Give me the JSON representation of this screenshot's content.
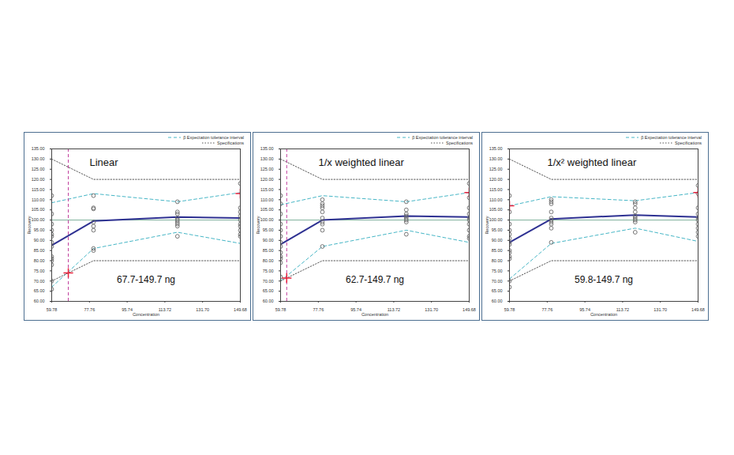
{
  "chart_data": [
    {
      "type": "line",
      "title": "Linear",
      "annotations": [
        "67.7-149.7 ng"
      ],
      "xlabel": "Concentration",
      "ylabel": "Recovery",
      "xlim": [
        59.78,
        149.68
      ],
      "xticks": [
        59.78,
        77.76,
        95.74,
        113.72,
        {
          "value": 131.7,
          "label": "131.70"
        },
        149.68
      ],
      "ylim": [
        60,
        135
      ],
      "yticks": [
        {
          "value": 60,
          "label": "60.00"
        },
        {
          "value": 65,
          "label": "65.00"
        },
        {
          "value": 70,
          "label": "70.00"
        },
        {
          "value": 75,
          "label": "75.00"
        },
        {
          "value": 80,
          "label": "80.00"
        },
        {
          "value": 85,
          "label": "85.00"
        },
        {
          "value": 90,
          "label": "90.00"
        },
        {
          "value": 95,
          "label": "95.00"
        },
        {
          "value": 100,
          "label": "100.00"
        },
        {
          "value": 105,
          "label": "105.00"
        },
        {
          "value": 110,
          "label": "110.00"
        },
        {
          "value": 115,
          "label": "115.00"
        },
        {
          "value": 120,
          "label": "120.00"
        },
        {
          "value": 125,
          "label": "125.00"
        },
        {
          "value": 130,
          "label": "130.00"
        },
        {
          "value": 135,
          "label": "135.00"
        }
      ],
      "grid": false,
      "legend": "top-right",
      "x": [
        59.78,
        79.7,
        119.7,
        149.68
      ],
      "series": [
        {
          "type": "line",
          "color": "#2e3192",
          "line_style": "solid",
          "values": [
            87.5,
            99.5,
            101.5,
            101
          ]
        },
        {
          "type": "interval",
          "name": "β Expectation tolerance interval",
          "color": "#46b6c6",
          "line_style": "dashed",
          "x": [
            59.78,
            79.7,
            119.7,
            149.68
          ],
          "lower": [
            67,
            86,
            94,
            88.5
          ],
          "upper": [
            108.5,
            113,
            109,
            113.5
          ]
        },
        {
          "type": "interval",
          "name": "Specifications",
          "color": "#555555",
          "line_style": "dotted",
          "x": [
            59.78,
            79.7,
            149.68
          ],
          "lower": [
            70,
            80,
            80
          ],
          "upper": [
            130,
            120,
            120
          ]
        },
        {
          "type": "scatter",
          "marker": "circle",
          "color": "#666666",
          "x": [
            59.78,
            59.78,
            59.78,
            59.78,
            59.78,
            59.78,
            59.78,
            59.78,
            59.78,
            59.78,
            59.78,
            59.78,
            59.78,
            59.78,
            79.7,
            79.7,
            79.7,
            79.7,
            79.7,
            79.7,
            79.7,
            79.7,
            119.7,
            119.7,
            119.7,
            119.7,
            119.7,
            119.7,
            119.7,
            119.7,
            119.7,
            149.68,
            149.68,
            149.68,
            149.68,
            149.68,
            149.68,
            149.68,
            149.68,
            149.68,
            149.68
          ],
          "values": [
            112,
            103,
            98,
            95,
            93,
            92,
            89,
            87,
            82,
            81,
            80,
            78,
            70,
            66,
            112,
            106,
            105.5,
            99,
            97,
            95,
            86,
            85,
            109,
            104,
            103,
            101,
            100,
            99,
            98,
            97,
            92,
            118,
            106,
            104,
            102,
            100,
            98,
            97,
            95,
            93,
            92
          ]
        }
      ],
      "reference_line": {
        "value": 100,
        "color": "#7fb09c"
      },
      "limits": {
        "values": [
          67.7,
          149.7
        ],
        "color": "#c03c9c",
        "line_style": "dashed"
      },
      "intersections": {
        "x": [
          67.7,
          149.68
        ],
        "values": [
          74,
          113
        ],
        "color": "#e8223c",
        "marker": "plus"
      }
    },
    {
      "type": "line",
      "title": "1/x weighted linear",
      "annotations": [
        "62.7-149.7 ng"
      ],
      "xlabel": "Concentration",
      "ylabel": "Recovery",
      "xlim": [
        59.78,
        149.68
      ],
      "xticks": [
        59.78,
        77.76,
        95.74,
        113.72,
        {
          "value": 131.7,
          "label": "131.70"
        },
        149.68
      ],
      "ylim": [
        60,
        135
      ],
      "yticks": [
        {
          "value": 60,
          "label": "60.00"
        },
        {
          "value": 65,
          "label": "65.00"
        },
        {
          "value": 70,
          "label": "70.00"
        },
        {
          "value": 75,
          "label": "75.00"
        },
        {
          "value": 80,
          "label": "80.00"
        },
        {
          "value": 85,
          "label": "85.00"
        },
        {
          "value": 90,
          "label": "90.00"
        },
        {
          "value": 95,
          "label": "95.00"
        },
        {
          "value": 100,
          "label": "100.00"
        },
        {
          "value": 105,
          "label": "105.00"
        },
        {
          "value": 110,
          "label": "110.00"
        },
        {
          "value": 115,
          "label": "115.00"
        },
        {
          "value": 120,
          "label": "120.00"
        },
        {
          "value": 125,
          "label": "125.00"
        },
        {
          "value": 130,
          "label": "130.00"
        },
        {
          "value": 135,
          "label": "135.00"
        }
      ],
      "grid": false,
      "legend": "top-right",
      "x": [
        59.78,
        79.7,
        119.7,
        149.68
      ],
      "series": [
        {
          "type": "line",
          "color": "#2e3192",
          "line_style": "solid",
          "values": [
            88,
            100,
            102,
            101.5
          ]
        },
        {
          "type": "interval",
          "name": "β Expectation tolerance interval",
          "color": "#46b6c6",
          "line_style": "dashed",
          "x": [
            59.78,
            79.7,
            119.7,
            149.68
          ],
          "lower": [
            70,
            87,
            95,
            89
          ],
          "upper": [
            107.5,
            112,
            109,
            113.5
          ]
        },
        {
          "type": "interval",
          "name": "Specifications",
          "color": "#555555",
          "line_style": "dotted",
          "x": [
            59.78,
            79.7,
            149.68
          ],
          "lower": [
            70,
            80,
            80
          ],
          "upper": [
            130,
            120,
            120
          ]
        },
        {
          "type": "scatter",
          "marker": "circle",
          "color": "#666666",
          "x": [
            59.78,
            59.78,
            59.78,
            59.78,
            59.78,
            59.78,
            59.78,
            59.78,
            59.78,
            59.78,
            59.78,
            59.78,
            59.78,
            79.7,
            79.7,
            79.7,
            79.7,
            79.7,
            79.7,
            79.7,
            79.7,
            79.7,
            79.7,
            119.7,
            119.7,
            119.7,
            119.7,
            119.7,
            119.7,
            119.7,
            119.7,
            149.68,
            149.68,
            149.68,
            149.68,
            149.68,
            149.68,
            149.68,
            149.68,
            149.68,
            149.68
          ],
          "values": [
            112,
            108,
            103,
            98,
            95,
            92,
            89,
            87,
            84,
            82,
            81,
            79,
            72,
            110,
            108,
            107,
            106,
            104,
            101,
            99,
            98,
            95,
            87,
            109,
            105,
            103,
            102,
            101,
            100,
            99,
            93,
            118,
            111,
            106,
            103,
            101,
            100,
            98,
            95,
            92,
            91
          ]
        }
      ],
      "reference_line": {
        "value": 100,
        "color": "#7fb09c"
      },
      "limits": {
        "values": [
          62.7,
          149.7
        ],
        "color": "#c03c9c",
        "line_style": "dashed"
      },
      "intersections": {
        "x": [
          62.7,
          149.68
        ],
        "values": [
          71.5,
          113.5
        ],
        "color": "#e8223c",
        "marker": "plus"
      }
    },
    {
      "type": "line",
      "title": "1/x² weighted linear",
      "annotations": [
        "59.8-149.7 ng"
      ],
      "xlabel": "Concentration",
      "ylabel": "Recovery",
      "xlim": [
        59.78,
        149.68
      ],
      "xticks": [
        59.78,
        77.76,
        95.74,
        113.72,
        {
          "value": 131.7,
          "label": "131.70"
        },
        149.68
      ],
      "ylim": [
        60,
        135
      ],
      "yticks": [
        {
          "value": 60,
          "label": "60.00"
        },
        {
          "value": 65,
          "label": "65.00"
        },
        {
          "value": 70,
          "label": "70.00"
        },
        {
          "value": 75,
          "label": "75.00"
        },
        {
          "value": 80,
          "label": "80.00"
        },
        {
          "value": 85,
          "label": "85.00"
        },
        {
          "value": 90,
          "label": "90.00"
        },
        {
          "value": 95,
          "label": "95.00"
        },
        {
          "value": 100,
          "label": "100.00"
        },
        {
          "value": 105,
          "label": "105.00"
        },
        {
          "value": 110,
          "label": "110.00"
        },
        {
          "value": 115,
          "label": "115.00"
        },
        {
          "value": 120,
          "label": "120.00"
        },
        {
          "value": 125,
          "label": "125.00"
        },
        {
          "value": 130,
          "label": "130.00"
        },
        {
          "value": 135,
          "label": "135.00"
        }
      ],
      "grid": false,
      "legend": "top-right",
      "x": [
        59.78,
        79.7,
        119.7,
        149.68
      ],
      "series": [
        {
          "type": "line",
          "color": "#2e3192",
          "line_style": "solid",
          "values": [
            89,
            100.5,
            102.5,
            101.5
          ]
        },
        {
          "type": "interval",
          "name": "β Expectation tolerance interval",
          "color": "#46b6c6",
          "line_style": "dashed",
          "x": [
            59.78,
            79.7,
            119.7,
            149.68
          ],
          "lower": [
            71,
            88.5,
            96,
            89.5
          ],
          "upper": [
            107,
            111.5,
            109.5,
            113.5
          ]
        },
        {
          "type": "interval",
          "name": "Specifications",
          "color": "#555555",
          "line_style": "dotted",
          "x": [
            59.78,
            79.7,
            149.68
          ],
          "lower": [
            70,
            80,
            80
          ],
          "upper": [
            130,
            120,
            120
          ]
        },
        {
          "type": "scatter",
          "marker": "circle",
          "color": "#666666",
          "x": [
            59.78,
            59.78,
            59.78,
            59.78,
            59.78,
            59.78,
            59.78,
            59.78,
            59.78,
            59.78,
            59.78,
            59.78,
            59.78,
            59.78,
            79.7,
            79.7,
            79.7,
            79.7,
            79.7,
            79.7,
            79.7,
            79.7,
            79.7,
            79.7,
            119.7,
            119.7,
            119.7,
            119.7,
            119.7,
            119.7,
            119.7,
            119.7,
            119.7,
            149.68,
            149.68,
            149.68,
            149.68,
            149.68,
            149.68,
            149.68,
            149.68,
            149.68,
            149.68
          ],
          "values": [
            112,
            104,
            98,
            95,
            93,
            91,
            89,
            88,
            85,
            84,
            82,
            81,
            70,
            67,
            110,
            109,
            108,
            104,
            101,
            100,
            99,
            98,
            96,
            89,
            109,
            108,
            106,
            104,
            102,
            101,
            100,
            99,
            94,
            117,
            113,
            106,
            103,
            101,
            100,
            98,
            96,
            94,
            92
          ]
        }
      ],
      "reference_line": {
        "value": 100,
        "color": "#7fb09c"
      },
      "limits": {
        "values": [
          59.8,
          149.7
        ],
        "color": "#c03c9c",
        "line_style": "dashed"
      },
      "intersections": {
        "x": [
          59.78,
          149.68
        ],
        "values": [
          107,
          113.5
        ],
        "color": "#e8223c",
        "marker": "plus"
      }
    }
  ]
}
